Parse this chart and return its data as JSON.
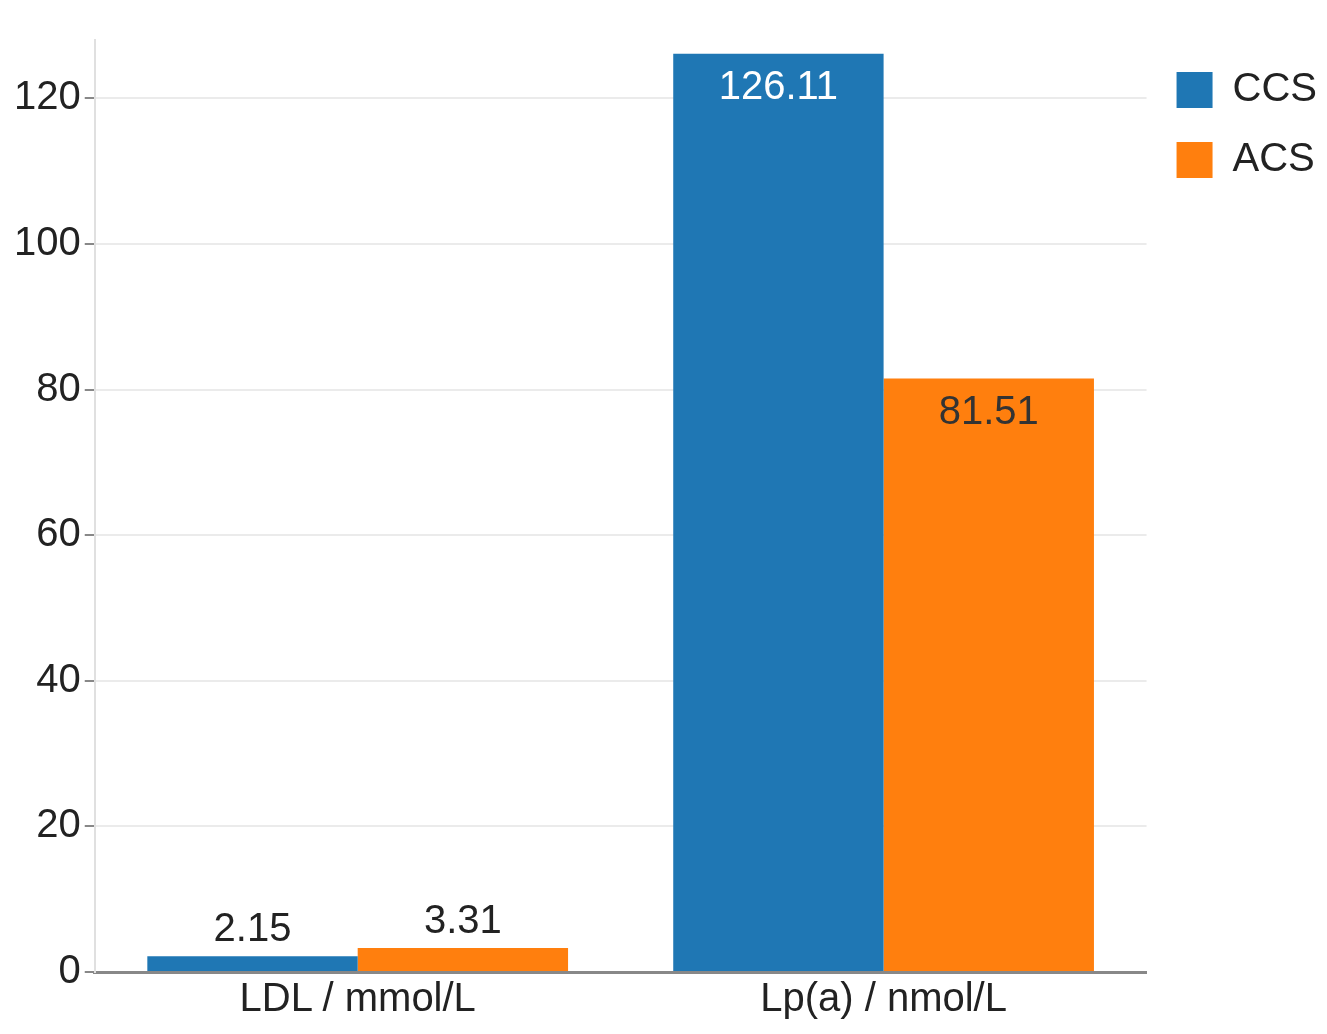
{
  "chart_data": {
    "type": "bar",
    "categories": [
      "LDL / mmol/L",
      "Lp(a) / nmol/L"
    ],
    "series": [
      {
        "name": "CCS",
        "color": "#1f77b4",
        "values": [
          2.15,
          126.11
        ]
      },
      {
        "name": "ACS",
        "color": "#ff7f0e",
        "values": [
          3.31,
          81.51
        ]
      }
    ],
    "ylim": [
      0,
      128
    ],
    "yticks": [
      0,
      20,
      40,
      60,
      80,
      100,
      120
    ],
    "grid": "y",
    "legend": "top right",
    "data_labels": true
  }
}
